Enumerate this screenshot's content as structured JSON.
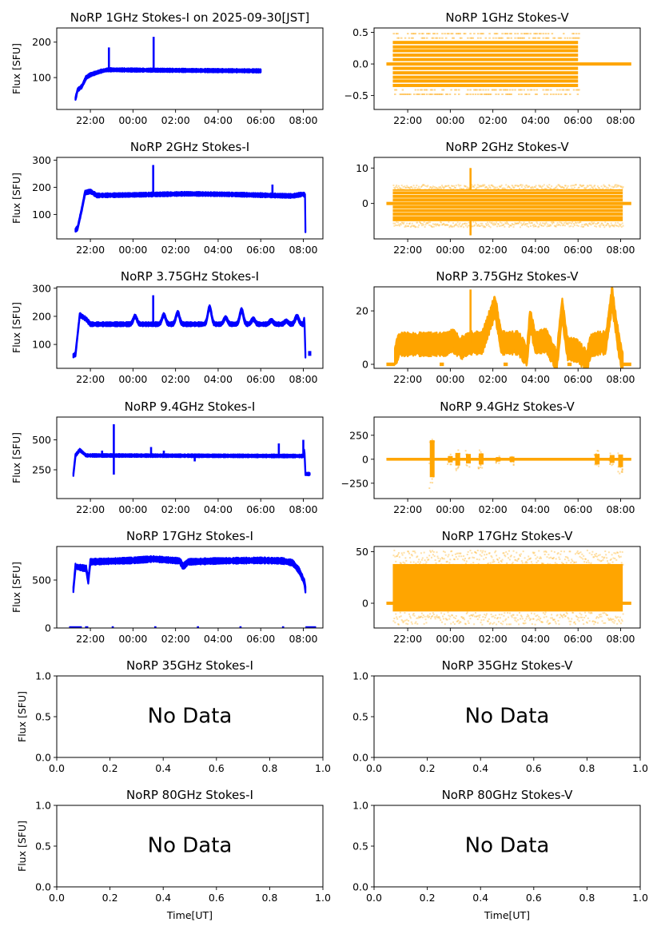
{
  "figure": {
    "xlabel": "Time[UT]",
    "ylabel": "Flux [SFU]",
    "no_data_text": "No Data",
    "colors": {
      "stokes_i": "#0000ff",
      "stokes_v": "#ffa500",
      "frame": "#000000"
    }
  },
  "chart_data": [
    {
      "type": "scatter",
      "id": "1ghz-i",
      "title": "NoRP 1GHz Stokes-I on 2025-09-30[JST]",
      "ylabel": "Flux [SFU]",
      "ylim": [
        10,
        240
      ],
      "yticks": [
        100,
        200
      ],
      "xlim_hours": [
        20.42,
        32.92
      ],
      "xticks": [
        "22:00",
        "00:00",
        "02:00",
        "04:00",
        "06:00",
        "08:00"
      ],
      "color": "stokes_i",
      "baseline": [
        [
          21.3,
          40
        ],
        [
          21.4,
          65
        ],
        [
          21.6,
          75
        ],
        [
          21.8,
          100
        ],
        [
          22.0,
          108
        ],
        [
          22.5,
          118
        ],
        [
          22.8,
          122
        ],
        [
          24.5,
          121
        ],
        [
          27,
          120
        ],
        [
          30.0,
          119
        ]
      ],
      "band": 4,
      "spikes": [
        [
          22.87,
          185
        ],
        [
          24.97,
          215
        ]
      ],
      "range_hours": [
        21.3,
        30.0
      ]
    },
    {
      "type": "scatter",
      "id": "1ghz-v",
      "title": "NoRP 1GHz Stokes-V",
      "ylabel": "",
      "ylim": [
        -0.72,
        0.57
      ],
      "yticks": [
        -0.5,
        0.0,
        0.5
      ],
      "ytick_labels": [
        "−0.5",
        "0.0",
        "0.5"
      ],
      "xlim_hours": [
        20.42,
        32.92
      ],
      "xticks": [
        "22:00",
        "00:00",
        "02:00",
        "04:00",
        "06:00",
        "08:00"
      ],
      "color": "stokes_v",
      "quantized_levels": [
        -0.34,
        -0.27,
        -0.21,
        -0.14,
        -0.07,
        0.0,
        0.07,
        0.14,
        0.21,
        0.27,
        0.34
      ],
      "sparse_levels": [
        -0.48,
        -0.41,
        0.41,
        0.48
      ],
      "range_hours": [
        21.3,
        30.0
      ],
      "zero_line_hours": [
        21.0,
        32.5
      ]
    },
    {
      "type": "scatter",
      "id": "2ghz-i",
      "title": "NoRP 2GHz Stokes-I",
      "ylabel": "Flux [SFU]",
      "ylim": [
        10,
        310
      ],
      "yticks": [
        100,
        200,
        300
      ],
      "xlim_hours": [
        20.42,
        32.92
      ],
      "xticks": [
        "22:00",
        "00:00",
        "02:00",
        "04:00",
        "06:00",
        "08:00"
      ],
      "color": "stokes_i",
      "baseline": [
        [
          21.3,
          42
        ],
        [
          21.4,
          50
        ],
        [
          21.6,
          120
        ],
        [
          21.75,
          180
        ],
        [
          22.0,
          185
        ],
        [
          22.3,
          170
        ],
        [
          24,
          172
        ],
        [
          26.5,
          176
        ],
        [
          28.5,
          174
        ],
        [
          31.5,
          168
        ],
        [
          32.0,
          175
        ],
        [
          32.08,
          170
        ],
        [
          32.1,
          42
        ]
      ],
      "band": 6,
      "spikes": [
        [
          24.95,
          282
        ],
        [
          30.55,
          210
        ]
      ],
      "range_hours": [
        21.3,
        32.1
      ]
    },
    {
      "type": "scatter",
      "id": "2ghz-v",
      "title": "NoRP 2GHz Stokes-V",
      "ylabel": "",
      "ylim": [
        -10,
        13
      ],
      "yticks": [
        0,
        10
      ],
      "xlim_hours": [
        20.42,
        32.92
      ],
      "xticks": [
        "22:00",
        "00:00",
        "02:00",
        "04:00",
        "06:00",
        "08:00"
      ],
      "color": "stokes_v",
      "band_range": [
        -5,
        4
      ],
      "spikes": [
        [
          24.95,
          10
        ],
        [
          24.95,
          -9
        ]
      ],
      "range_hours": [
        21.3,
        32.1
      ],
      "zero_line_hours": [
        21.0,
        32.5
      ]
    },
    {
      "type": "scatter",
      "id": "3.75ghz-i",
      "title": "NoRP 3.75GHz Stokes-I",
      "ylabel": "Flux [SFU]",
      "ylim": [
        15,
        305
      ],
      "yticks": [
        100,
        200,
        300
      ],
      "xlim_hours": [
        20.42,
        32.92
      ],
      "xticks": [
        "22:00",
        "00:00",
        "02:00",
        "04:00",
        "06:00",
        "08:00"
      ],
      "color": "stokes_i",
      "baseline": [
        [
          21.2,
          60
        ],
        [
          21.3,
          65
        ],
        [
          21.5,
          205
        ],
        [
          21.8,
          190
        ],
        [
          22.0,
          172
        ],
        [
          32.0,
          172
        ],
        [
          32.05,
          195
        ],
        [
          32.1,
          60
        ]
      ],
      "band": 6,
      "bumps": [
        [
          24.1,
          200
        ],
        [
          25.45,
          205
        ],
        [
          26.1,
          213
        ],
        [
          27.6,
          232
        ],
        [
          28.35,
          195
        ],
        [
          29.1,
          222
        ],
        [
          29.65,
          190
        ],
        [
          30.5,
          185
        ],
        [
          31.2,
          183
        ],
        [
          31.7,
          200
        ]
      ],
      "spikes": [
        [
          24.95,
          275
        ]
      ],
      "points": [
        [
          32.3,
          68
        ]
      ],
      "range_hours": [
        21.2,
        32.1
      ]
    },
    {
      "type": "scatter",
      "id": "3.75ghz-v",
      "title": "NoRP 3.75GHz Stokes-V",
      "ylabel": "",
      "ylim": [
        -1.5,
        29
      ],
      "yticks": [
        0,
        20
      ],
      "xlim_hours": [
        20.42,
        32.92
      ],
      "xticks": [
        "22:00",
        "00:00",
        "02:00",
        "04:00",
        "06:00",
        "08:00"
      ],
      "color": "stokes_v",
      "baseline": [
        [
          21.4,
          3
        ],
        [
          21.6,
          7.5
        ],
        [
          23.8,
          7.5
        ],
        [
          24.1,
          9
        ],
        [
          24.5,
          6
        ],
        [
          24.9,
          8
        ],
        [
          25.5,
          8
        ],
        [
          26.1,
          22
        ],
        [
          26.4,
          8
        ],
        [
          27.2,
          8
        ],
        [
          27.6,
          3
        ],
        [
          27.75,
          17
        ],
        [
          28.0,
          8
        ],
        [
          28.5,
          9
        ],
        [
          29.0,
          1
        ],
        [
          29.25,
          21
        ],
        [
          29.5,
          6
        ],
        [
          30.0,
          5
        ],
        [
          30.4,
          1
        ],
        [
          30.6,
          7
        ],
        [
          31.0,
          8
        ],
        [
          31.3,
          8
        ],
        [
          31.6,
          25
        ],
        [
          31.9,
          8
        ],
        [
          32.1,
          0
        ]
      ],
      "band": 3.5,
      "spikes": [
        [
          24.95,
          28
        ]
      ],
      "zero_segments": [
        [
          21.0,
          21.4
        ],
        [
          23.5,
          23.7
        ],
        [
          26.5,
          26.7
        ],
        [
          29.5,
          29.7
        ],
        [
          32.1,
          32.5
        ]
      ]
    },
    {
      "type": "scatter",
      "id": "9.4ghz-i",
      "title": "NoRP 9.4GHz Stokes-I",
      "ylabel": "Flux [SFU]",
      "ylim": [
        10,
        690
      ],
      "yticks": [
        250,
        500
      ],
      "xlim_hours": [
        20.42,
        32.92
      ],
      "xticks": [
        "22:00",
        "00:00",
        "02:00",
        "04:00",
        "06:00",
        "08:00"
      ],
      "color": "stokes_i",
      "baseline": [
        [
          21.2,
          210
        ],
        [
          21.3,
          370
        ],
        [
          21.5,
          415
        ],
        [
          21.8,
          370
        ],
        [
          32.0,
          365
        ],
        [
          32.05,
          420
        ],
        [
          32.1,
          215
        ],
        [
          32.3,
          215
        ]
      ],
      "band": 10,
      "spikes": [
        [
          23.1,
          630
        ],
        [
          23.1,
          210
        ],
        [
          22.55,
          410
        ],
        [
          24.85,
          440
        ],
        [
          25.45,
          410
        ],
        [
          26.9,
          320
        ],
        [
          30.85,
          470
        ],
        [
          32.0,
          500
        ]
      ],
      "range_hours": [
        21.2,
        32.3
      ]
    },
    {
      "type": "scatter",
      "id": "9.4ghz-v",
      "title": "NoRP 9.4GHz Stokes-V",
      "ylabel": "",
      "ylim": [
        -410,
        440
      ],
      "yticks": [
        -250,
        0,
        250
      ],
      "ytick_labels": [
        "−250",
        "0",
        "250"
      ],
      "xlim_hours": [
        20.42,
        32.92
      ],
      "xticks": [
        "22:00",
        "00:00",
        "02:00",
        "04:00",
        "06:00",
        "08:00"
      ],
      "color": "stokes_v",
      "bursts": [
        [
          23.15,
          360,
          -340
        ],
        [
          24.0,
          60,
          -60
        ],
        [
          24.35,
          120,
          -120
        ],
        [
          24.85,
          100,
          -80
        ],
        [
          25.45,
          110,
          -100
        ],
        [
          26.25,
          40,
          -40
        ],
        [
          26.9,
          50,
          -50
        ],
        [
          30.9,
          100,
          -100
        ],
        [
          31.6,
          80,
          -70
        ],
        [
          32.0,
          90,
          -150
        ]
      ],
      "band": 15,
      "range_hours": [
        21.0,
        32.5
      ]
    },
    {
      "type": "scatter",
      "id": "17ghz-i",
      "title": "NoRP 17GHz Stokes-I",
      "ylabel": "Flux [SFU]",
      "ylim": [
        0,
        850
      ],
      "yticks": [
        0,
        500
      ],
      "xlim_hours": [
        20.42,
        32.92
      ],
      "xticks": [
        "22:00",
        "00:00",
        "02:00",
        "04:00",
        "06:00",
        "08:00"
      ],
      "color": "stokes_i",
      "baseline": [
        [
          21.2,
          400
        ],
        [
          21.3,
          640
        ],
        [
          21.8,
          620
        ],
        [
          21.9,
          490
        ],
        [
          22.0,
          690
        ],
        [
          24.0,
          705
        ],
        [
          24.95,
          720
        ],
        [
          26.2,
          700
        ],
        [
          26.35,
          640
        ],
        [
          26.6,
          690
        ],
        [
          28,
          700
        ],
        [
          30,
          705
        ],
        [
          31.0,
          700
        ],
        [
          31.5,
          680
        ],
        [
          31.8,
          600
        ],
        [
          32.05,
          480
        ],
        [
          32.1,
          400
        ]
      ],
      "band": 25,
      "zero_segments": [
        [
          21.0,
          21.6
        ],
        [
          21.75,
          21.9
        ],
        [
          23.0,
          23.1
        ],
        [
          25.0,
          25.1
        ],
        [
          27.0,
          27.1
        ],
        [
          29.0,
          29.1
        ],
        [
          31.0,
          31.1
        ],
        [
          32.1,
          32.6
        ]
      ]
    },
    {
      "type": "scatter",
      "id": "17ghz-v",
      "title": "NoRP 17GHz Stokes-V",
      "ylabel": "",
      "ylim": [
        -24,
        55
      ],
      "yticks": [
        0,
        50
      ],
      "xlim_hours": [
        20.42,
        32.92
      ],
      "xticks": [
        "22:00",
        "00:00",
        "02:00",
        "04:00",
        "06:00",
        "08:00"
      ],
      "color": "stokes_v",
      "band_range": [
        -8,
        38
      ],
      "sparse_range": [
        -20,
        52
      ],
      "range_hours": [
        21.3,
        32.1
      ],
      "zero_line_hours": [
        21.0,
        32.5
      ]
    },
    {
      "type": "scatter",
      "id": "35ghz-i",
      "title": "NoRP 35GHz Stokes-I",
      "empty": true,
      "ylabel": "Flux [SFU]",
      "ylim": [
        0,
        1
      ],
      "xlim": [
        0,
        1
      ],
      "yticks": [
        0.0,
        0.5,
        1.0
      ],
      "ytick_labels": [
        "0.0",
        "0.5",
        "1.0"
      ],
      "xticks": [
        "0.0",
        "0.2",
        "0.4",
        "0.6",
        "0.8",
        "1.0"
      ]
    },
    {
      "type": "scatter",
      "id": "35ghz-v",
      "title": "NoRP 35GHz Stokes-V",
      "empty": true,
      "ylabel": "",
      "ylim": [
        0,
        1
      ],
      "xlim": [
        0,
        1
      ],
      "yticks": [
        0.0,
        0.5,
        1.0
      ],
      "ytick_labels": [
        "0.0",
        "0.5",
        "1.0"
      ],
      "xticks": [
        "0.0",
        "0.2",
        "0.4",
        "0.6",
        "0.8",
        "1.0"
      ]
    },
    {
      "type": "scatter",
      "id": "80ghz-i",
      "title": "NoRP 80GHz Stokes-I",
      "empty": true,
      "ylabel": "Flux [SFU]",
      "xlabel": "Time[UT]",
      "ylim": [
        0,
        1
      ],
      "xlim": [
        0,
        1
      ],
      "yticks": [
        0.0,
        0.5,
        1.0
      ],
      "ytick_labels": [
        "0.0",
        "0.5",
        "1.0"
      ],
      "xticks": [
        "0.0",
        "0.2",
        "0.4",
        "0.6",
        "0.8",
        "1.0"
      ]
    },
    {
      "type": "scatter",
      "id": "80ghz-v",
      "title": "NoRP 80GHz Stokes-V",
      "empty": true,
      "ylabel": "",
      "xlabel": "Time[UT]",
      "ylim": [
        0,
        1
      ],
      "xlim": [
        0,
        1
      ],
      "yticks": [
        0.0,
        0.5,
        1.0
      ],
      "ytick_labels": [
        "0.0",
        "0.5",
        "1.0"
      ],
      "xticks": [
        "0.0",
        "0.2",
        "0.4",
        "0.6",
        "0.8",
        "1.0"
      ]
    }
  ]
}
